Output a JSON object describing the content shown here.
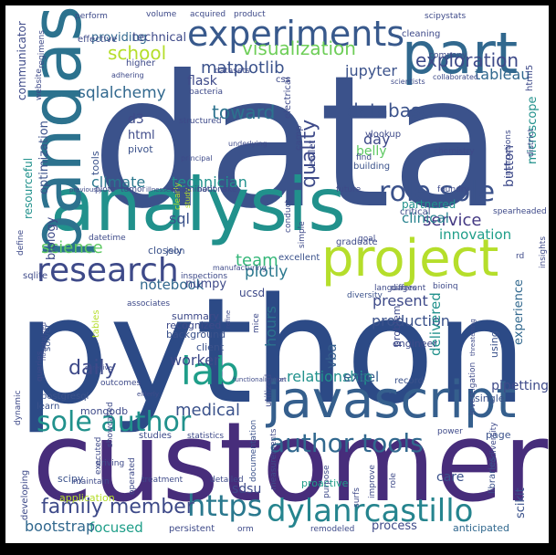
{
  "word_cloud": {
    "background": "#ffffff",
    "frame_color": "#000000",
    "words": [
      {
        "text": "data",
        "size": 200,
        "color": "#3b528b"
      },
      {
        "text": "python",
        "size": 160,
        "color": "#2c4a86"
      },
      {
        "text": "customer",
        "size": 120,
        "color": "#472d7b"
      },
      {
        "text": "analysis",
        "size": 80,
        "color": "#21918c"
      },
      {
        "text": "pandas",
        "size": 76,
        "color": "#2c728e"
      },
      {
        "text": "part",
        "size": 62,
        "color": "#31688e"
      },
      {
        "text": "javascript",
        "size": 56,
        "color": "#355f8d"
      },
      {
        "text": "project",
        "size": 56,
        "color": "#b5de2b"
      },
      {
        "text": "experiments",
        "size": 38,
        "color": "#38598c"
      },
      {
        "text": "research",
        "size": 36,
        "color": "#3e4a89"
      },
      {
        "text": "https",
        "size": 32,
        "color": "#2a788e"
      },
      {
        "text": "dylanrcastillo",
        "size": 34,
        "color": "#25848e"
      },
      {
        "text": "lab",
        "size": 42,
        "color": "#1f9e89"
      },
      {
        "text": "sole author",
        "size": 30,
        "color": "#21918c"
      },
      {
        "text": "role sole",
        "size": 30,
        "color": "#3b528b"
      },
      {
        "text": "author tools",
        "size": 28,
        "color": "#31688e"
      },
      {
        "text": "family member",
        "size": 22,
        "color": "#3e4a89"
      },
      {
        "text": "visualization",
        "size": 20,
        "color": "#6ece58"
      },
      {
        "text": "exploration",
        "size": 20,
        "color": "#3e4a89"
      },
      {
        "text": "matplotlib",
        "size": 18,
        "color": "#3b528b"
      },
      {
        "text": "sqlalchemy",
        "size": 17,
        "color": "#31688e"
      },
      {
        "text": "database",
        "size": 20,
        "color": "#3b528b"
      },
      {
        "text": "toward",
        "size": 20,
        "color": "#2c728e"
      },
      {
        "text": "school",
        "size": 20,
        "color": "#b5de2b"
      },
      {
        "text": "service",
        "size": 18,
        "color": "#443983"
      },
      {
        "text": "quality",
        "size": 22,
        "color": "#3e4a89"
      },
      {
        "text": "science",
        "size": 18,
        "color": "#5ec962"
      },
      {
        "text": "climate",
        "size": 16,
        "color": "#2a788e"
      },
      {
        "text": "technician",
        "size": 16,
        "color": "#21918c"
      },
      {
        "text": "jupyter",
        "size": 16,
        "color": "#3b528b"
      },
      {
        "text": "tableau",
        "size": 16,
        "color": "#31688e"
      },
      {
        "text": "plotly",
        "size": 17,
        "color": "#2a788e"
      },
      {
        "text": "team",
        "size": 18,
        "color": "#35b779"
      },
      {
        "text": "daily",
        "size": 22,
        "color": "#3e4a89"
      },
      {
        "text": "medical",
        "size": 18,
        "color": "#3b528b"
      },
      {
        "text": "notebook",
        "size": 15,
        "color": "#31688e"
      },
      {
        "text": "focused",
        "size": 15,
        "color": "#1f9e89"
      },
      {
        "text": "bootstrap",
        "size": 16,
        "color": "#31688e"
      },
      {
        "text": "worker",
        "size": 16,
        "color": "#3e4a89"
      },
      {
        "text": "hours",
        "size": 16,
        "color": "#2c728e"
      },
      {
        "text": "production",
        "size": 16,
        "color": "#3b528b"
      },
      {
        "text": "present",
        "size": 16,
        "color": "#3e4a89"
      },
      {
        "text": "relationship",
        "size": 16,
        "color": "#21918c"
      },
      {
        "text": "excel",
        "size": 15,
        "color": "#355f8d"
      },
      {
        "text": "vba",
        "size": 15,
        "color": "#355f8d"
      },
      {
        "text": "delivered",
        "size": 15,
        "color": "#21918c"
      },
      {
        "text": "innovation",
        "size": 15,
        "color": "#1f9e89"
      },
      {
        "text": "clinical",
        "size": 15,
        "color": "#26828e"
      },
      {
        "text": "day",
        "size": 16,
        "color": "#3e4a89"
      },
      {
        "text": "belly",
        "size": 14,
        "color": "#5ec962"
      },
      {
        "text": "button",
        "size": 14,
        "color": "#3e4a89"
      },
      {
        "text": "microscope",
        "size": 13,
        "color": "#21918c"
      },
      {
        "text": "experience",
        "size": 13,
        "color": "#31688e"
      },
      {
        "text": "pipetting",
        "size": 14,
        "color": "#3e4a89"
      },
      {
        "text": "sdsu",
        "size": 14,
        "color": "#3e4a89"
      },
      {
        "text": "care",
        "size": 14,
        "color": "#3b528b"
      },
      {
        "text": "scikit",
        "size": 13,
        "color": "#3b528b"
      },
      {
        "text": "process",
        "size": 13,
        "color": "#3e4a89"
      },
      {
        "text": "anticipated",
        "size": 11,
        "color": "#31688e"
      },
      {
        "text": "resourceful",
        "size": 12,
        "color": "#21918c"
      },
      {
        "text": "communicator",
        "size": 12,
        "color": "#3e4a89"
      },
      {
        "text": "optimization",
        "size": 13,
        "color": "#3b528b"
      },
      {
        "text": "biology",
        "size": 13,
        "color": "#3e4a89"
      },
      {
        "text": "providing",
        "size": 13,
        "color": "#31688e"
      },
      {
        "text": "technical",
        "size": 13,
        "color": "#3e4a89"
      },
      {
        "text": "flask",
        "size": 14,
        "color": "#3e4a89"
      },
      {
        "text": "sql",
        "size": 16,
        "color": "#3b528b"
      },
      {
        "text": "ucsd",
        "size": 12,
        "color": "#3e4a89"
      },
      {
        "text": "numpy",
        "size": 13,
        "color": "#3e4a89"
      },
      {
        "text": "d3",
        "size": 14,
        "color": "#3e4a89"
      },
      {
        "text": "html",
        "size": 13,
        "color": "#3e4a89"
      },
      {
        "text": "pivot",
        "size": 11,
        "color": "#3b528b"
      },
      {
        "text": "tools",
        "size": 11,
        "color": "#3b528b"
      },
      {
        "text": "scipy",
        "size": 11,
        "color": "#3b528b"
      },
      {
        "text": "application",
        "size": 11,
        "color": "#b5de2b"
      },
      {
        "text": "mongodb",
        "size": 11,
        "color": "#3e4a89"
      },
      {
        "text": "problem",
        "size": 11,
        "color": "#3e4a89"
      },
      {
        "text": "engineer",
        "size": 11,
        "color": "#3e4a89"
      },
      {
        "text": "single",
        "size": 11,
        "color": "#3b528b"
      },
      {
        "text": "using",
        "size": 11,
        "color": "#3b528b"
      },
      {
        "text": "page",
        "size": 11,
        "color": "#3b528b"
      },
      {
        "text": "record",
        "size": 10,
        "color": "#3b528b"
      },
      {
        "text": "background",
        "size": 11,
        "color": "#3b528b"
      },
      {
        "text": "recognized",
        "size": 11,
        "color": "#3e4a89"
      },
      {
        "text": "summary",
        "size": 11,
        "color": "#3e4a89"
      },
      {
        "text": "client",
        "size": 11,
        "color": "#3b528b"
      },
      {
        "text": "closely",
        "size": 11,
        "color": "#3b528b"
      },
      {
        "text": "json",
        "size": 10,
        "color": "#3b528b"
      },
      {
        "text": "sqlite",
        "size": 10,
        "color": "#3e4a89"
      },
      {
        "text": "vlookup",
        "size": 10,
        "color": "#3e4a89"
      },
      {
        "text": "find",
        "size": 9,
        "color": "#3e4a89"
      },
      {
        "text": "building",
        "size": 10,
        "color": "#3b528b"
      },
      {
        "text": "css",
        "size": 10,
        "color": "#3e4a89"
      },
      {
        "text": "electrical",
        "size": 10,
        "color": "#3e4a89"
      },
      {
        "text": "camp",
        "size": 10,
        "color": "#3e4a89"
      },
      {
        "text": "leaflet",
        "size": 10,
        "color": "#3e4a89"
      },
      {
        "text": "future",
        "size": 9,
        "color": "#3e4a89"
      },
      {
        "text": "critical",
        "size": 10,
        "color": "#3e4a89"
      },
      {
        "text": "partnered",
        "size": 12,
        "color": "#21918c"
      },
      {
        "text": "spearheaded",
        "size": 9,
        "color": "#3e4a89"
      },
      {
        "text": "graduate",
        "size": 10,
        "color": "#3e4a89"
      },
      {
        "text": "excellent",
        "size": 10,
        "color": "#3b528b"
      },
      {
        "text": "diversity",
        "size": 9,
        "color": "#3b528b"
      },
      {
        "text": "tables",
        "size": 10,
        "color": "#b5de2b"
      },
      {
        "text": "solver",
        "size": 10,
        "color": "#3b528b"
      },
      {
        "text": "queries",
        "size": 9,
        "color": "#3e4a89"
      },
      {
        "text": "outcomes",
        "size": 9,
        "color": "#3e4a89"
      },
      {
        "text": "postgresql",
        "size": 10,
        "color": "#3b528b"
      },
      {
        "text": "learn",
        "size": 10,
        "color": "#3b528b"
      },
      {
        "text": "studies",
        "size": 10,
        "color": "#3e4a89"
      },
      {
        "text": "statistics",
        "size": 9,
        "color": "#3e4a89"
      },
      {
        "text": "developing",
        "size": 10,
        "color": "#3e4a89"
      },
      {
        "text": "executed",
        "size": 9,
        "color": "#3e4a89"
      },
      {
        "text": "showcased",
        "size": 9,
        "color": "#3e4a89"
      },
      {
        "text": "treatment",
        "size": 9,
        "color": "#3e4a89"
      },
      {
        "text": "detailed",
        "size": 9,
        "color": "#3e4a89"
      },
      {
        "text": "documentation",
        "size": 9,
        "color": "#3b528b"
      },
      {
        "text": "measurements",
        "size": 9,
        "color": "#3e4a89"
      },
      {
        "text": "proactive",
        "size": 11,
        "color": "#1f9e89"
      },
      {
        "text": "purpose",
        "size": 9,
        "color": "#3e4a89"
      },
      {
        "text": "surfs",
        "size": 9,
        "color": "#3e4a89"
      },
      {
        "text": "improve",
        "size": 9,
        "color": "#3e4a89"
      },
      {
        "text": "persistent",
        "size": 10,
        "color": "#3e4a89"
      },
      {
        "text": "orm",
        "size": 9,
        "color": "#3e4a89"
      },
      {
        "text": "remodeled",
        "size": 9,
        "color": "#3e4a89"
      },
      {
        "text": "maintain",
        "size": 9,
        "color": "#3e4a89"
      },
      {
        "text": "operated",
        "size": 9,
        "color": "#3e4a89"
      },
      {
        "text": "libraries",
        "size": 10,
        "color": "#3b528b"
      },
      {
        "text": "biodiversity",
        "size": 9,
        "color": "#3e4a89"
      },
      {
        "text": "perform",
        "size": 9,
        "color": "#3e4a89"
      },
      {
        "text": "volume",
        "size": 9,
        "color": "#3e4a89"
      },
      {
        "text": "acquired",
        "size": 9,
        "color": "#3e4a89"
      },
      {
        "text": "product",
        "size": 9,
        "color": "#3e4a89"
      },
      {
        "text": "scipystats",
        "size": 9,
        "color": "#3e4a89"
      },
      {
        "text": "cleaning",
        "size": 10,
        "color": "#3e4a89"
      },
      {
        "text": "company",
        "size": 9,
        "color": "#3e4a89"
      },
      {
        "text": "scientists",
        "size": 8,
        "color": "#3e4a89"
      },
      {
        "text": "collaborated",
        "size": 8,
        "color": "#3e4a89"
      },
      {
        "text": "effective",
        "size": 10,
        "color": "#3e4a89"
      },
      {
        "text": "higher",
        "size": 10,
        "color": "#3e4a89"
      },
      {
        "text": "regimens",
        "size": 9,
        "color": "#3e4a89"
      },
      {
        "text": "website",
        "size": 9,
        "color": "#3e4a89"
      },
      {
        "text": "adhering",
        "size": 8,
        "color": "#3e4a89"
      },
      {
        "text": "datasets",
        "size": 9,
        "color": "#3e4a89"
      },
      {
        "text": "bacteria",
        "size": 9,
        "color": "#3e4a89"
      },
      {
        "text": "structured",
        "size": 9,
        "color": "#3e4a89"
      },
      {
        "text": "underlying",
        "size": 8,
        "color": "#3e4a89"
      },
      {
        "text": "principal",
        "size": 8,
        "color": "#3e4a89"
      },
      {
        "text": "clearly",
        "size": 9,
        "color": "#b5de2b"
      },
      {
        "text": "study",
        "size": 8,
        "color": "#b5de2b"
      },
      {
        "text": "conduct",
        "size": 9,
        "color": "#3e4a89"
      },
      {
        "text": "simple",
        "size": 9,
        "color": "#3e4a89"
      },
      {
        "text": "mice",
        "size": 9,
        "color": "#3e4a89"
      },
      {
        "text": "chemistry",
        "size": 9,
        "color": "#3e4a89"
      },
      {
        "text": "foundry",
        "size": 9,
        "color": "#3e4a89"
      },
      {
        "text": "instructions",
        "size": 9,
        "color": "#3e4a89"
      },
      {
        "text": "district",
        "size": 9,
        "color": "#3e4a89"
      },
      {
        "text": "insights",
        "size": 9,
        "color": "#3e4a89"
      },
      {
        "text": "html5",
        "size": 10,
        "color": "#3e4a89"
      },
      {
        "text": "define",
        "size": 9,
        "color": "#3e4a89"
      },
      {
        "text": "datetime",
        "size": 9,
        "color": "#3e4a89"
      },
      {
        "text": "associates",
        "size": 9,
        "color": "#3e4a89"
      },
      {
        "text": "inspections",
        "size": 9,
        "color": "#3e4a89"
      },
      {
        "text": "manufacturing",
        "size": 8,
        "color": "#3e4a89"
      },
      {
        "text": "goal",
        "size": 9,
        "color": "#3e4a89"
      },
      {
        "text": "languages",
        "size": 9,
        "color": "#3e4a89"
      },
      {
        "text": "different",
        "size": 9,
        "color": "#3e4a89"
      },
      {
        "text": "bioinq",
        "size": 9,
        "color": "#3e4a89"
      },
      {
        "text": "rd",
        "size": 9,
        "color": "#3e4a89"
      },
      {
        "text": "threatening",
        "size": 7,
        "color": "#3e4a89"
      },
      {
        "text": "caregiver",
        "size": 7,
        "color": "#3e4a89"
      },
      {
        "text": "hospitalized",
        "size": 7,
        "color": "#3e4a89"
      },
      {
        "text": "refine",
        "size": 7,
        "color": "#3e4a89"
      },
      {
        "text": "functionalization",
        "size": 7,
        "color": "#3e4a89"
      },
      {
        "text": "set",
        "size": 7,
        "color": "#3e4a89"
      },
      {
        "text": "elderly",
        "size": 7,
        "color": "#3e4a89"
      },
      {
        "text": "utilized",
        "size": 10,
        "color": "#3e4a89"
      },
      {
        "text": "investigation",
        "size": 9,
        "color": "#3e4a89"
      },
      {
        "text": "power",
        "size": 9,
        "color": "#3e4a89"
      },
      {
        "text": "role",
        "size": 9,
        "color": "#3e4a89"
      },
      {
        "text": "dynamic",
        "size": 9,
        "color": "#3e4a89"
      },
      {
        "text": "driving",
        "size": 9,
        "color": "#3e4a89"
      },
      {
        "text": "previously",
        "size": 7,
        "color": "#3e4a89"
      },
      {
        "text": "plots",
        "size": 9,
        "color": "#3e4a89"
      },
      {
        "text": "tumor",
        "size": 9,
        "color": "#3e4a89"
      },
      {
        "text": "illnesses",
        "size": 7,
        "color": "#3e4a89"
      },
      {
        "text": "examinations",
        "size": 9,
        "color": "#3e4a89"
      },
      {
        "text": "boot",
        "size": 9,
        "color": "#3e4a89"
      },
      {
        "text": "like",
        "size": 9,
        "color": "#3e4a89"
      }
    ]
  }
}
